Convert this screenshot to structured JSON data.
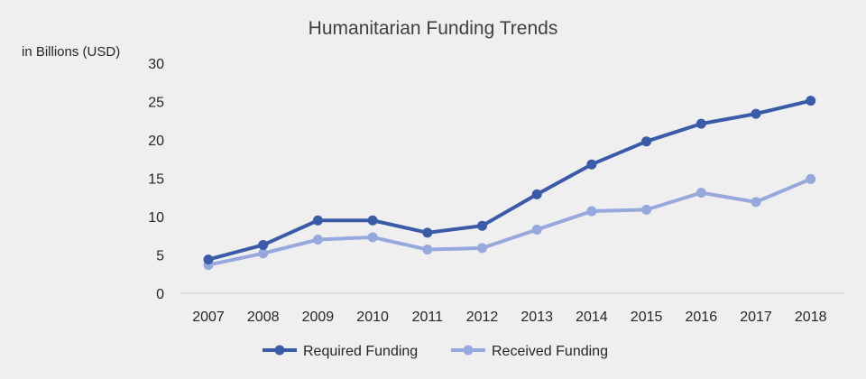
{
  "chart_data": {
    "type": "line",
    "title": "Humanitarian Funding Trends",
    "ylabel": "in Billions (USD)",
    "xlabel": "",
    "categories": [
      "2007",
      "2008",
      "2009",
      "2010",
      "2011",
      "2012",
      "2013",
      "2014",
      "2015",
      "2016",
      "2017",
      "2018"
    ],
    "ylim": [
      0,
      30
    ],
    "yticks": [
      0,
      5,
      10,
      15,
      20,
      25,
      30
    ],
    "grid": false,
    "legend_position": "bottom",
    "series": [
      {
        "name": "Required Funding",
        "color": "#3a5ba8",
        "values": [
          4.4,
          6.3,
          9.5,
          9.5,
          7.9,
          8.8,
          12.9,
          16.8,
          19.8,
          22.1,
          23.4,
          25.1
        ]
      },
      {
        "name": "Received Funding",
        "color": "#97a9dc",
        "values": [
          3.7,
          5.2,
          7.0,
          7.3,
          5.7,
          5.9,
          8.3,
          10.7,
          10.9,
          13.1,
          11.9,
          14.9
        ]
      }
    ]
  }
}
